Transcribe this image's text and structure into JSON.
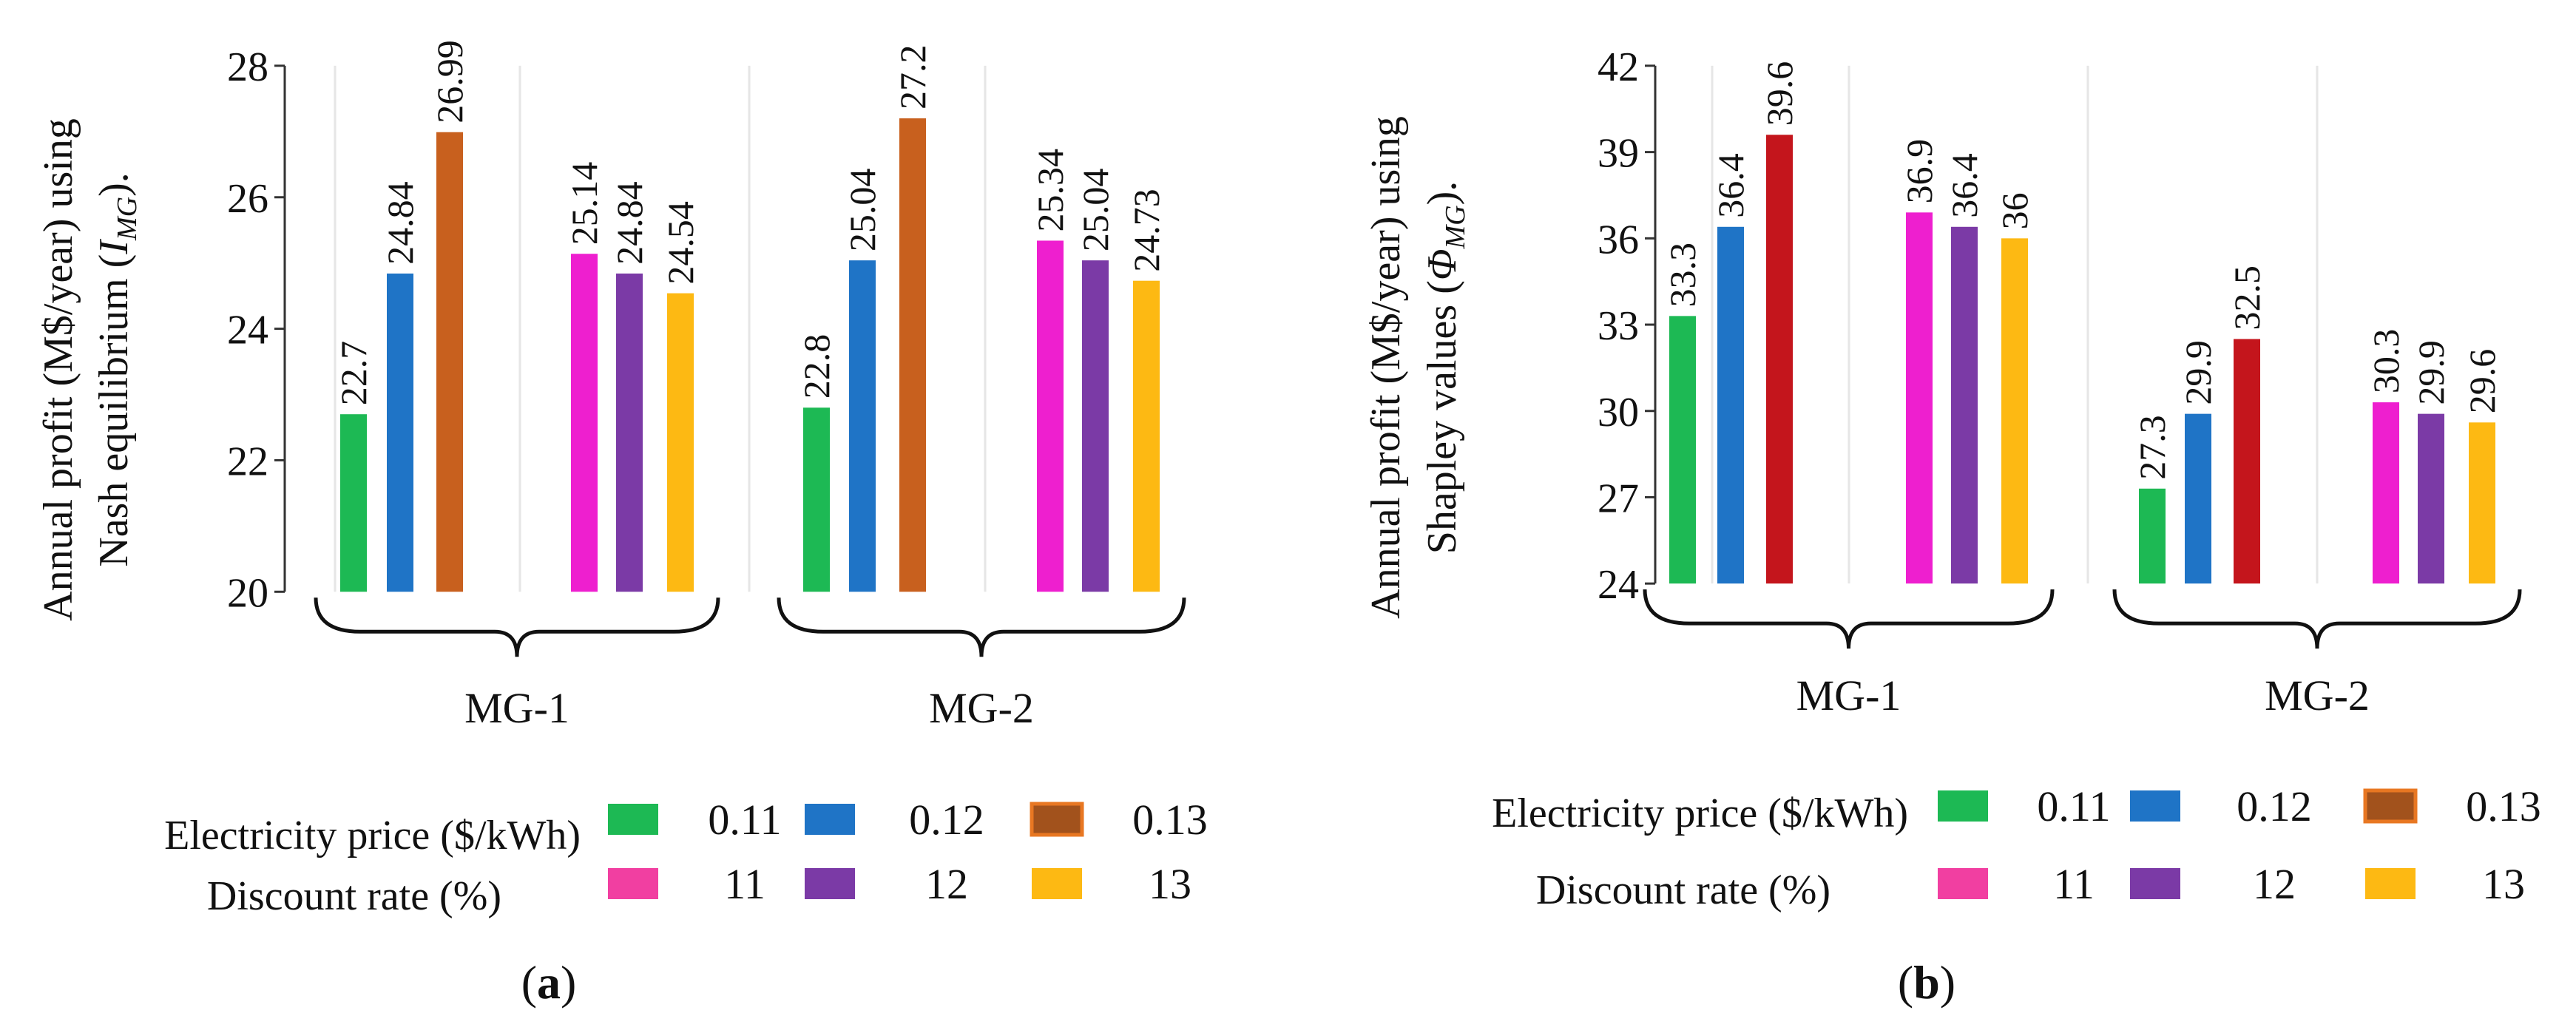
{
  "charts": [
    {
      "panel_label_prefix": "(",
      "panel_label_letter": "a",
      "panel_label_suffix": ")",
      "ylabel_line1": "Annual profit (M$/year) using",
      "ylabel_line2_text": "Nash equilibrium (",
      "ylabel_symbol": "I",
      "ylabel_subscript": "MG",
      "ylabel_tail": ").",
      "legend_title_price": "Electricity price ($/kWh)",
      "legend_title_rate": "Discount rate (%)"
    },
    {
      "panel_label_prefix": "(",
      "panel_label_letter": "b",
      "panel_label_suffix": ")",
      "ylabel_line1": "Annual profit (M$/year) using",
      "ylabel_line2_text": "Shapley values (",
      "ylabel_symbol": "Φ",
      "ylabel_subscript": "MG",
      "ylabel_tail": ").",
      "legend_title_price": "Electricity price ($/kWh)",
      "legend_title_rate": "Discount rate (%)"
    }
  ],
  "chart_data": [
    {
      "type": "bar",
      "title": "",
      "xlabel": "",
      "ylabel": "Annual profit (M$/year) using Nash equilibrium (I_MG)",
      "ylim": [
        20,
        28
      ],
      "yticks": [
        20,
        22,
        24,
        26,
        28
      ],
      "grid": false,
      "categories": [
        "MG-1",
        "MG-2"
      ],
      "series": [
        {
          "name": "Electricity price 0.11",
          "group": "price",
          "legend": "0.11",
          "color": "#1db954",
          "values": [
            22.7,
            22.8
          ],
          "labels": [
            "22.7",
            "22.8"
          ]
        },
        {
          "name": "Electricity price 0.12",
          "group": "price",
          "legend": "0.12",
          "color": "#1f74c6",
          "values": [
            24.84,
            25.04
          ],
          "labels": [
            "24.84",
            "25.04"
          ]
        },
        {
          "name": "Electricity price 0.13",
          "group": "price",
          "legend": "0.13",
          "color": "#c8601e",
          "values": [
            26.99,
            27.2
          ],
          "labels": [
            "26.99",
            "27.2"
          ]
        },
        {
          "name": "Discount rate 11",
          "group": "rate",
          "legend": "11",
          "color": "#ee1fcf",
          "values": [
            25.14,
            25.34
          ],
          "labels": [
            "25.14",
            "25.34"
          ]
        },
        {
          "name": "Discount rate 12",
          "group": "rate",
          "legend": "12",
          "color": "#7b3aa6",
          "values": [
            24.84,
            25.04
          ],
          "labels": [
            "24.84",
            "25.04"
          ]
        },
        {
          "name": "Discount rate 13",
          "group": "rate",
          "legend": "13",
          "color": "#fdb913",
          "values": [
            24.54,
            24.73
          ],
          "labels": [
            "24.54",
            "24.73"
          ]
        }
      ],
      "legend_swatch_colors": [
        "#1db954",
        "#1f74c6",
        "#a2521c",
        "#f13fa1",
        "#7b3aa6",
        "#fdb913"
      ],
      "legend_swatch_border_0.13": "#e87722",
      "legend_position": "bottom"
    },
    {
      "type": "bar",
      "title": "",
      "xlabel": "",
      "ylabel": "Annual profit (M$/year) using Shapley values (Φ_MG)",
      "ylim": [
        24,
        42
      ],
      "yticks": [
        24,
        27,
        30,
        33,
        36,
        39,
        42
      ],
      "grid": false,
      "categories": [
        "MG-1",
        "MG-2"
      ],
      "series": [
        {
          "name": "Electricity price 0.11",
          "group": "price",
          "legend": "0.11",
          "color": "#1db954",
          "values": [
            33.3,
            27.3
          ],
          "labels": [
            "33.3",
            "27.3"
          ]
        },
        {
          "name": "Electricity price 0.12",
          "group": "price",
          "legend": "0.12",
          "color": "#1f74c6",
          "values": [
            36.4,
            29.9
          ],
          "labels": [
            "36.4",
            "29.9"
          ]
        },
        {
          "name": "Electricity price 0.13",
          "group": "price",
          "legend": "0.13",
          "color": "#c4151c",
          "values": [
            39.6,
            32.5
          ],
          "labels": [
            "39.6",
            "32.5"
          ]
        },
        {
          "name": "Discount rate 11",
          "group": "rate",
          "legend": "11",
          "color": "#ee1fcf",
          "values": [
            36.9,
            30.3
          ],
          "labels": [
            "36.9",
            "30.3"
          ]
        },
        {
          "name": "Discount rate 12",
          "group": "rate",
          "legend": "12",
          "color": "#7b3aa6",
          "values": [
            36.4,
            29.9
          ],
          "labels": [
            "36.4",
            "29.9"
          ]
        },
        {
          "name": "Discount rate 13",
          "group": "rate",
          "legend": "13",
          "color": "#fdb913",
          "values": [
            36,
            29.6
          ],
          "labels": [
            "36",
            "29.6"
          ]
        }
      ],
      "legend_swatch_colors": [
        "#1db954",
        "#1f74c6",
        "#a2521c",
        "#f13fa1",
        "#7b3aa6",
        "#fdb913"
      ],
      "legend_swatch_border_0.13": "#e87722",
      "legend_position": "bottom"
    }
  ]
}
